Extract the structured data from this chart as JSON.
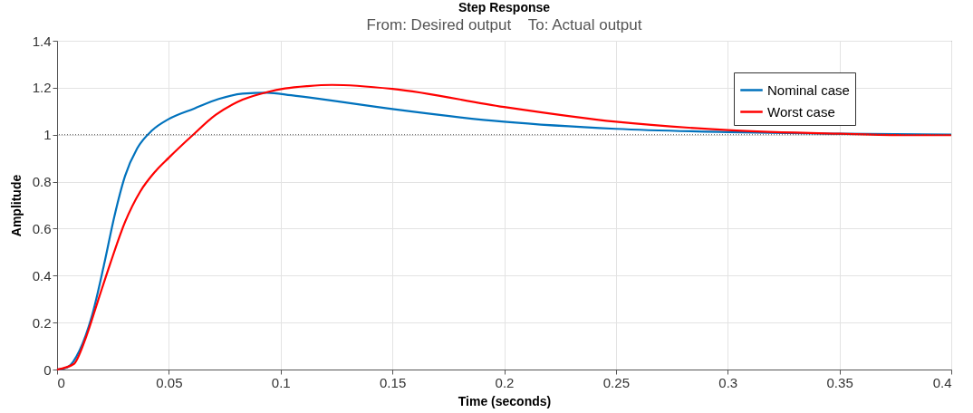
{
  "chart_data": {
    "type": "line",
    "title": "Step Response",
    "subtitle": "From: Desired output    To: Actual output",
    "xlabel": "Time (seconds)",
    "ylabel": "Amplitude",
    "xlim": [
      0,
      0.4
    ],
    "xticks": [
      0,
      0.05,
      0.1,
      0.15,
      0.2,
      0.25,
      0.3,
      0.35,
      0.4
    ],
    "ylim": [
      0,
      1.4
    ],
    "yticks": [
      0,
      0.2,
      0.4,
      0.6,
      0.8,
      1,
      1.2,
      1.4
    ],
    "grid": true,
    "legend": "top right",
    "line_style": "solid",
    "marker": "none",
    "ref_lines": [
      {
        "axis": "y",
        "value": 1,
        "line_style": "dotted",
        "color": "#555555"
      }
    ],
    "series": [
      {
        "name": "Nominal case",
        "color": "#0072bd",
        "x": [
          0,
          0.0047,
          0.0101,
          0.0155,
          0.021,
          0.0257,
          0.0304,
          0.0358,
          0.0426,
          0.05,
          0.0615,
          0.0723,
          0.083,
          0.0939,
          0.1047,
          0.118,
          0.15,
          0.2,
          0.25,
          0.3,
          0.35,
          0.4
        ],
        "values": [
          0,
          0.01,
          0.082,
          0.225,
          0.446,
          0.655,
          0.824,
          0.941,
          1.019,
          1.067,
          1.112,
          1.152,
          1.175,
          1.179,
          1.168,
          1.152,
          1.109,
          1.055,
          1.025,
          1.011,
          1.004,
          1.0
        ]
      },
      {
        "name": "Worst case",
        "color": "#ff0000",
        "x": [
          0,
          0.0074,
          0.0128,
          0.0182,
          0.0236,
          0.0304,
          0.0372,
          0.0439,
          0.05,
          0.0601,
          0.0709,
          0.083,
          0.0939,
          0.102,
          0.112,
          0.123,
          0.15,
          0.2,
          0.25,
          0.3,
          0.35,
          0.38,
          0.4
        ],
        "values": [
          0,
          0.023,
          0.134,
          0.29,
          0.446,
          0.628,
          0.758,
          0.843,
          0.902,
          0.993,
          1.084,
          1.149,
          1.181,
          1.197,
          1.207,
          1.212,
          1.195,
          1.118,
          1.055,
          1.02,
          1.004,
          0.998,
          0.998
        ]
      }
    ]
  }
}
